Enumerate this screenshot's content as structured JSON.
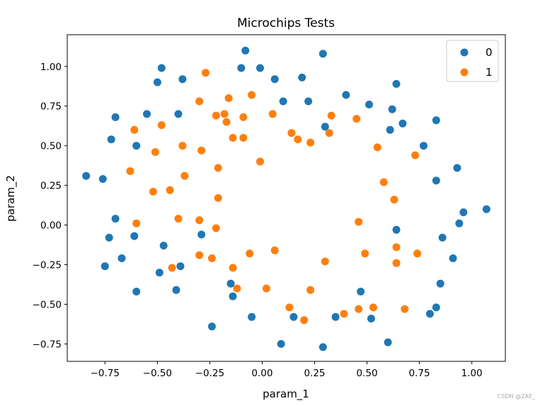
{
  "chart_data": {
    "type": "scatter",
    "title": "Microchips Tests",
    "xlabel": "param_1",
    "ylabel": "param_2",
    "xlim": [
      -0.93,
      1.16
    ],
    "ylim": [
      -0.86,
      1.2
    ],
    "xticks": [
      -0.75,
      -0.5,
      -0.25,
      0.0,
      0.25,
      0.5,
      0.75,
      1.0
    ],
    "xtick_labels": [
      "−0.75",
      "−0.50",
      "−0.25",
      "0.00",
      "0.25",
      "0.50",
      "0.75",
      "1.00"
    ],
    "yticks": [
      -0.75,
      -0.5,
      -0.25,
      0.0,
      0.25,
      0.5,
      0.75,
      1.0
    ],
    "ytick_labels": [
      "−0.75",
      "−0.50",
      "−0.25",
      "0.00",
      "0.25",
      "0.50",
      "0.75",
      "1.00"
    ],
    "legend_position": "top-right",
    "grid": false,
    "series": [
      {
        "name": "0",
        "color": "#1f77b4",
        "points": [
          [
            -0.08,
            1.1
          ],
          [
            0.29,
            1.08
          ],
          [
            -0.48,
            0.99
          ],
          [
            -0.1,
            0.99
          ],
          [
            -0.01,
            0.99
          ],
          [
            -0.5,
            0.9
          ],
          [
            -0.38,
            0.92
          ],
          [
            0.06,
            0.92
          ],
          [
            0.19,
            0.93
          ],
          [
            0.4,
            0.82
          ],
          [
            0.64,
            0.89
          ],
          [
            0.1,
            0.78
          ],
          [
            0.22,
            0.78
          ],
          [
            0.51,
            0.76
          ],
          [
            0.62,
            0.73
          ],
          [
            -0.7,
            0.68
          ],
          [
            -0.55,
            0.7
          ],
          [
            -0.4,
            0.7
          ],
          [
            0.67,
            0.64
          ],
          [
            0.83,
            0.66
          ],
          [
            0.3,
            0.62
          ],
          [
            0.61,
            0.6
          ],
          [
            -0.72,
            0.54
          ],
          [
            -0.6,
            0.5
          ],
          [
            0.77,
            0.5
          ],
          [
            -0.84,
            0.31
          ],
          [
            -0.76,
            0.29
          ],
          [
            0.93,
            0.36
          ],
          [
            0.83,
            0.28
          ],
          [
            1.07,
            0.1
          ],
          [
            0.96,
            0.08
          ],
          [
            -0.7,
            0.04
          ],
          [
            0.94,
            0.01
          ],
          [
            0.64,
            -0.03
          ],
          [
            -0.61,
            -0.07
          ],
          [
            -0.73,
            -0.08
          ],
          [
            -0.29,
            -0.06
          ],
          [
            0.86,
            -0.08
          ],
          [
            -0.47,
            -0.13
          ],
          [
            -0.67,
            -0.21
          ],
          [
            0.91,
            -0.21
          ],
          [
            -0.75,
            -0.26
          ],
          [
            -0.39,
            -0.26
          ],
          [
            -0.49,
            -0.3
          ],
          [
            -0.15,
            -0.37
          ],
          [
            0.85,
            -0.37
          ],
          [
            -0.6,
            -0.42
          ],
          [
            -0.41,
            -0.41
          ],
          [
            -0.14,
            -0.45
          ],
          [
            0.47,
            -0.42
          ],
          [
            0.83,
            -0.52
          ],
          [
            0.8,
            -0.56
          ],
          [
            -0.05,
            -0.58
          ],
          [
            0.15,
            -0.58
          ],
          [
            0.35,
            -0.58
          ],
          [
            0.52,
            -0.59
          ],
          [
            -0.24,
            -0.64
          ],
          [
            0.09,
            -0.75
          ],
          [
            0.29,
            -0.77
          ],
          [
            0.6,
            -0.74
          ]
        ]
      },
      {
        "name": "1",
        "color": "#ff7f0e",
        "points": [
          [
            -0.27,
            0.96
          ],
          [
            -0.05,
            0.82
          ],
          [
            -0.16,
            0.8
          ],
          [
            -0.3,
            0.78
          ],
          [
            -0.22,
            0.69
          ],
          [
            -0.18,
            0.7
          ],
          [
            -0.09,
            0.68
          ],
          [
            0.05,
            0.7
          ],
          [
            0.33,
            0.69
          ],
          [
            0.45,
            0.67
          ],
          [
            -0.48,
            0.63
          ],
          [
            -0.17,
            0.65
          ],
          [
            -0.61,
            0.6
          ],
          [
            0.14,
            0.58
          ],
          [
            0.32,
            0.58
          ],
          [
            -0.14,
            0.55
          ],
          [
            -0.09,
            0.55
          ],
          [
            0.17,
            0.54
          ],
          [
            0.23,
            0.52
          ],
          [
            -0.38,
            0.5
          ],
          [
            -0.51,
            0.46
          ],
          [
            -0.29,
            0.47
          ],
          [
            0.55,
            0.49
          ],
          [
            0.73,
            0.44
          ],
          [
            -0.01,
            0.4
          ],
          [
            -0.21,
            0.36
          ],
          [
            -0.63,
            0.34
          ],
          [
            -0.37,
            0.31
          ],
          [
            0.58,
            0.27
          ],
          [
            -0.52,
            0.21
          ],
          [
            -0.44,
            0.22
          ],
          [
            -0.21,
            0.17
          ],
          [
            0.63,
            0.16
          ],
          [
            -0.4,
            0.04
          ],
          [
            -0.3,
            0.03
          ],
          [
            -0.6,
            0.01
          ],
          [
            0.46,
            0.02
          ],
          [
            -0.22,
            -0.02
          ],
          [
            0.64,
            -0.14
          ],
          [
            -0.06,
            -0.18
          ],
          [
            0.06,
            -0.16
          ],
          [
            -0.3,
            -0.19
          ],
          [
            0.49,
            -0.18
          ],
          [
            0.74,
            -0.18
          ],
          [
            -0.24,
            -0.21
          ],
          [
            0.3,
            -0.23
          ],
          [
            0.64,
            -0.24
          ],
          [
            -0.43,
            -0.27
          ],
          [
            -0.14,
            -0.27
          ],
          [
            -0.12,
            -0.4
          ],
          [
            0.02,
            -0.4
          ],
          [
            0.23,
            -0.41
          ],
          [
            0.13,
            -0.52
          ],
          [
            0.46,
            -0.53
          ],
          [
            0.53,
            -0.52
          ],
          [
            0.68,
            -0.53
          ],
          [
            0.39,
            -0.56
          ],
          [
            0.2,
            -0.6
          ]
        ]
      }
    ]
  },
  "watermark": "CSDN @ZAE_"
}
